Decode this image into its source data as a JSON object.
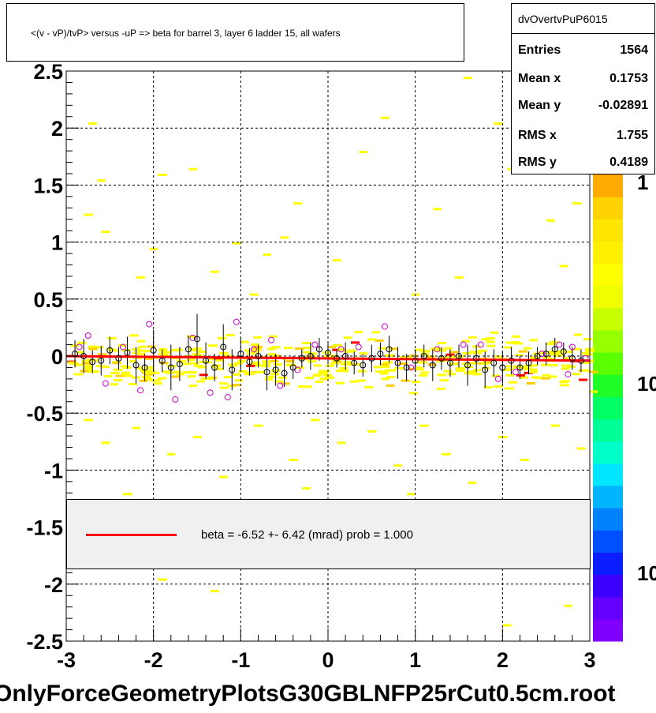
{
  "title": "<(v - vP)/tvP> versus  -uP => beta for barrel 3, layer 6 ladder 15, all wafers",
  "stats": {
    "name": "dvOvertvPuP6015",
    "rows": [
      {
        "key": "Entries",
        "value": "1564"
      },
      {
        "key": "Mean x",
        "value": "0.1753"
      },
      {
        "key": "Mean y",
        "value": "-0.02891"
      },
      {
        "key": "RMS x",
        "value": "1.755"
      },
      {
        "key": "RMS y",
        "value": "0.4189"
      }
    ]
  },
  "legend": {
    "text": "beta =   -6.52 +-  6.42 (mrad) prob = 1.000"
  },
  "footer": "OnlyForceGeometryPlotsG30GBLNFP25rCut0.5cm.root",
  "palette_labels": [
    "1",
    "10",
    "10"
  ],
  "colors": {
    "fit_line": "#ff0000",
    "profile_marker": "#000000",
    "alt_marker": "#cc00cc",
    "cell_low": "#ffff00",
    "cell_mid": "#ffcc00",
    "cell_high": "#ff0000"
  },
  "chart_data": {
    "type": "heatmap",
    "title": "<(v - vP)/tvP> versus  -uP => beta for barrel 3, layer 6 ladder 15, all wafers",
    "xlim": [
      -3,
      3
    ],
    "ylim": [
      -2.5,
      2.5
    ],
    "x_ticks": [
      "-3",
      "-2",
      "-1",
      "0",
      "1",
      "2",
      "3"
    ],
    "y_ticks": [
      "-2.5",
      "-2",
      "-1.5",
      "-1",
      "-0.5",
      "0",
      "0.5",
      "1",
      "1.5",
      "2",
      "2.5"
    ],
    "grid": true,
    "fit": {
      "slope_mrad": -6.52,
      "error_mrad": 6.42,
      "prob": 1.0,
      "y_at_xmin": 0.0,
      "y_at_xmax": -0.04
    },
    "profile_points": [
      {
        "x": -2.9,
        "y": 0.02,
        "e": 0.12
      },
      {
        "x": -2.8,
        "y": 0.0,
        "e": 0.15
      },
      {
        "x": -2.7,
        "y": -0.05,
        "e": 0.1
      },
      {
        "x": -2.6,
        "y": -0.04,
        "e": 0.13
      },
      {
        "x": -2.5,
        "y": 0.05,
        "e": 0.12
      },
      {
        "x": -2.4,
        "y": -0.02,
        "e": 0.1
      },
      {
        "x": -2.3,
        "y": 0.03,
        "e": 0.14
      },
      {
        "x": -2.2,
        "y": -0.08,
        "e": 0.16
      },
      {
        "x": -2.1,
        "y": -0.1,
        "e": 0.12
      },
      {
        "x": -2.0,
        "y": 0.05,
        "e": 0.18
      },
      {
        "x": -1.9,
        "y": -0.04,
        "e": 0.1
      },
      {
        "x": -1.8,
        "y": -0.1,
        "e": 0.2
      },
      {
        "x": -1.7,
        "y": -0.07,
        "e": 0.15
      },
      {
        "x": -1.6,
        "y": 0.06,
        "e": 0.12
      },
      {
        "x": -1.5,
        "y": 0.15,
        "e": 0.22
      },
      {
        "x": -1.4,
        "y": -0.04,
        "e": 0.16
      },
      {
        "x": -1.3,
        "y": -0.1,
        "e": 0.12
      },
      {
        "x": -1.2,
        "y": 0.08,
        "e": 0.2
      },
      {
        "x": -1.1,
        "y": -0.12,
        "e": 0.18
      },
      {
        "x": -1.0,
        "y": 0.02,
        "e": 0.14
      },
      {
        "x": -0.9,
        "y": -0.05,
        "e": 0.12
      },
      {
        "x": -0.8,
        "y": 0.0,
        "e": 0.1
      },
      {
        "x": -0.7,
        "y": -0.14,
        "e": 0.16
      },
      {
        "x": -0.6,
        "y": -0.12,
        "e": 0.14
      },
      {
        "x": -0.5,
        "y": -0.15,
        "e": 0.12
      },
      {
        "x": -0.4,
        "y": -0.1,
        "e": 0.1
      },
      {
        "x": -0.3,
        "y": -0.02,
        "e": 0.08
      },
      {
        "x": -0.2,
        "y": 0.0,
        "e": 0.12
      },
      {
        "x": -0.1,
        "y": 0.06,
        "e": 0.1
      },
      {
        "x": 0.0,
        "y": 0.03,
        "e": 0.1
      },
      {
        "x": 0.1,
        "y": -0.02,
        "e": 0.08
      },
      {
        "x": 0.2,
        "y": 0.0,
        "e": 0.12
      },
      {
        "x": 0.3,
        "y": -0.06,
        "e": 0.1
      },
      {
        "x": 0.4,
        "y": -0.08,
        "e": 0.1
      },
      {
        "x": 0.5,
        "y": -0.02,
        "e": 0.12
      },
      {
        "x": 0.6,
        "y": 0.02,
        "e": 0.1
      },
      {
        "x": 0.7,
        "y": 0.06,
        "e": 0.12
      },
      {
        "x": 0.8,
        "y": -0.06,
        "e": 0.14
      },
      {
        "x": 0.9,
        "y": -0.1,
        "e": 0.12
      },
      {
        "x": 1.0,
        "y": -0.04,
        "e": 0.1
      },
      {
        "x": 1.1,
        "y": 0.0,
        "e": 0.1
      },
      {
        "x": 1.2,
        "y": -0.08,
        "e": 0.14
      },
      {
        "x": 1.3,
        "y": -0.02,
        "e": 0.1
      },
      {
        "x": 1.4,
        "y": -0.06,
        "e": 0.12
      },
      {
        "x": 1.5,
        "y": 0.0,
        "e": 0.1
      },
      {
        "x": 1.6,
        "y": -0.08,
        "e": 0.18
      },
      {
        "x": 1.7,
        "y": -0.02,
        "e": 0.12
      },
      {
        "x": 1.8,
        "y": -0.12,
        "e": 0.16
      },
      {
        "x": 1.9,
        "y": -0.06,
        "e": 0.12
      },
      {
        "x": 2.0,
        "y": -0.1,
        "e": 0.14
      },
      {
        "x": 2.1,
        "y": -0.04,
        "e": 0.12
      },
      {
        "x": 2.2,
        "y": -0.1,
        "e": 0.1
      },
      {
        "x": 2.3,
        "y": -0.06,
        "e": 0.1
      },
      {
        "x": 2.4,
        "y": 0.0,
        "e": 0.08
      },
      {
        "x": 2.5,
        "y": 0.02,
        "e": 0.1
      },
      {
        "x": 2.6,
        "y": 0.06,
        "e": 0.1
      },
      {
        "x": 2.7,
        "y": 0.04,
        "e": 0.08
      },
      {
        "x": 2.8,
        "y": -0.02,
        "e": 0.1
      },
      {
        "x": 2.9,
        "y": -0.04,
        "e": 0.1
      }
    ],
    "alt_points": [
      {
        "x": -2.85,
        "y": 0.08
      },
      {
        "x": -2.75,
        "y": 0.18
      },
      {
        "x": -2.55,
        "y": -0.24
      },
      {
        "x": -2.35,
        "y": 0.08
      },
      {
        "x": -2.15,
        "y": -0.3
      },
      {
        "x": -2.05,
        "y": 0.28
      },
      {
        "x": -1.75,
        "y": -0.38
      },
      {
        "x": -1.55,
        "y": 0.16
      },
      {
        "x": -1.35,
        "y": -0.32
      },
      {
        "x": -1.15,
        "y": -0.36
      },
      {
        "x": -1.05,
        "y": 0.3
      },
      {
        "x": -0.85,
        "y": 0.06
      },
      {
        "x": -0.65,
        "y": 0.14
      },
      {
        "x": -0.55,
        "y": -0.26
      },
      {
        "x": -0.35,
        "y": -0.12
      },
      {
        "x": -0.15,
        "y": 0.1
      },
      {
        "x": 0.15,
        "y": 0.06
      },
      {
        "x": 0.35,
        "y": 0.08
      },
      {
        "x": 0.65,
        "y": 0.26
      },
      {
        "x": 0.95,
        "y": -0.1
      },
      {
        "x": 1.25,
        "y": 0.06
      },
      {
        "x": 1.55,
        "y": 0.1
      },
      {
        "x": 1.75,
        "y": 0.1
      },
      {
        "x": 1.95,
        "y": -0.2
      },
      {
        "x": 2.15,
        "y": -0.14
      },
      {
        "x": 2.45,
        "y": 0.02
      },
      {
        "x": 2.65,
        "y": 0.1
      },
      {
        "x": 2.75,
        "y": -0.16
      },
      {
        "x": 2.8,
        "y": 0.08
      },
      {
        "x": 2.95,
        "y": -0.02
      }
    ],
    "scatter_cells": [
      {
        "x": -2.65,
        "y": 1.55
      },
      {
        "x": -2.8,
        "y": 1.25
      },
      {
        "x": -2.6,
        "y": 1.1
      },
      {
        "x": -2.2,
        "y": 0.7
      },
      {
        "x": -2.75,
        "y": 2.05
      },
      {
        "x": -1.6,
        "y": 1.65
      },
      {
        "x": -1.95,
        "y": 1.6
      },
      {
        "x": -1.1,
        "y": 1.0
      },
      {
        "x": -0.75,
        "y": 0.9
      },
      {
        "x": -0.4,
        "y": 1.35
      },
      {
        "x": -0.55,
        "y": 1.05
      },
      {
        "x": 0.35,
        "y": 1.8
      },
      {
        "x": 0.6,
        "y": 2.1
      },
      {
        "x": 1.2,
        "y": 1.3
      },
      {
        "x": 1.55,
        "y": 2.45
      },
      {
        "x": 1.9,
        "y": 2.05
      },
      {
        "x": 2.05,
        "y": 1.65
      },
      {
        "x": 2.5,
        "y": 1.2
      },
      {
        "x": 2.65,
        "y": 0.8
      },
      {
        "x": 2.8,
        "y": 1.35
      },
      {
        "x": -2.8,
        "y": -0.55
      },
      {
        "x": -2.6,
        "y": -0.75
      },
      {
        "x": -2.25,
        "y": -0.62
      },
      {
        "x": -1.85,
        "y": -0.85
      },
      {
        "x": -1.55,
        "y": -0.7
      },
      {
        "x": -1.25,
        "y": -1.05
      },
      {
        "x": -0.85,
        "y": -0.6
      },
      {
        "x": -0.45,
        "y": -0.9
      },
      {
        "x": -0.2,
        "y": -0.55
      },
      {
        "x": 0.1,
        "y": -0.75
      },
      {
        "x": 0.45,
        "y": -0.65
      },
      {
        "x": 0.75,
        "y": -0.95
      },
      {
        "x": 1.05,
        "y": -0.6
      },
      {
        "x": 1.3,
        "y": -0.85
      },
      {
        "x": 1.6,
        "y": -1.1
      },
      {
        "x": 1.95,
        "y": -0.7
      },
      {
        "x": 2.2,
        "y": -0.9
      },
      {
        "x": 2.55,
        "y": -0.6
      },
      {
        "x": 2.85,
        "y": -0.8
      },
      {
        "x": -2.35,
        "y": -1.2
      },
      {
        "x": -0.3,
        "y": -1.15
      },
      {
        "x": 0.9,
        "y": -1.2
      },
      {
        "x": -1.95,
        "y": -1.95
      },
      {
        "x": -1.35,
        "y": -2.05
      },
      {
        "x": 2.7,
        "y": -2.18
      },
      {
        "x": 2.0,
        "y": -2.35
      },
      {
        "x": -1.35,
        "y": 0.75
      },
      {
        "x": 0.05,
        "y": 0.85
      },
      {
        "x": 1.45,
        "y": 0.7
      },
      {
        "x": -2.05,
        "y": 0.95
      },
      {
        "x": 0.95,
        "y": 0.55
      },
      {
        "x": -0.9,
        "y": 0.55
      }
    ]
  }
}
